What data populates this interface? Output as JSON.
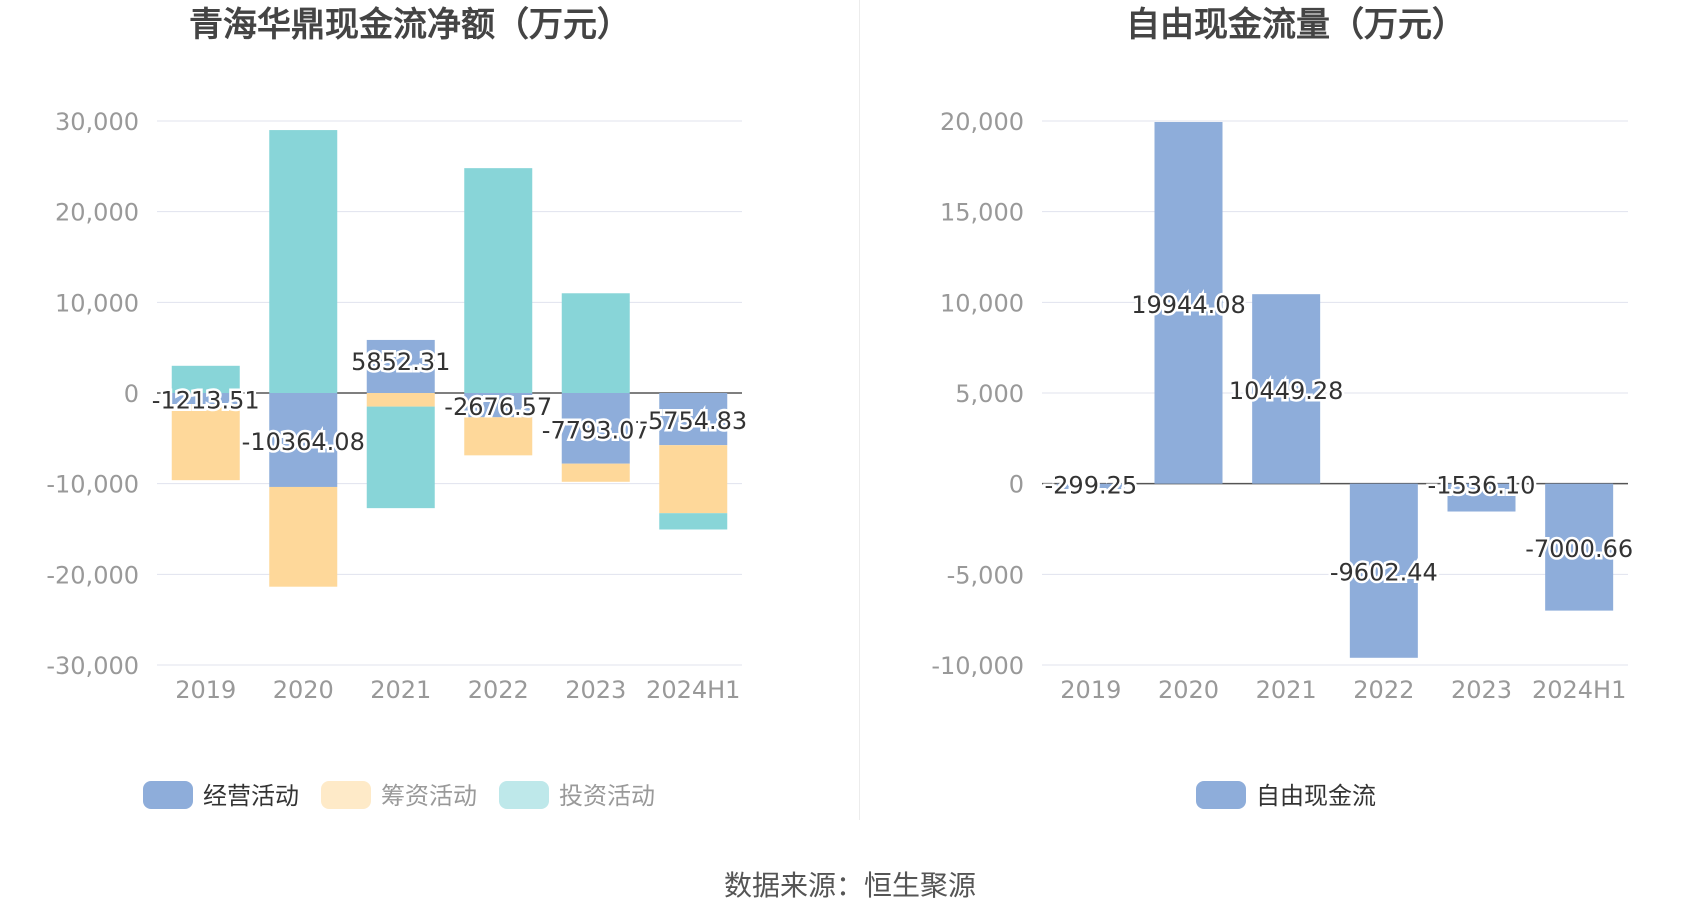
{
  "colors": {
    "operating": "#8eadda",
    "financing": "#fed89a",
    "investing": "#88d5d8",
    "fcf": "#8eadda",
    "axis_text": "#999999",
    "grid": "#e0e3ee",
    "title": "#444444"
  },
  "chart_data": [
    {
      "type": "bar",
      "stacked": true,
      "title": "青海华鼎现金流净额（万元）",
      "categories": [
        "2019",
        "2020",
        "2021",
        "2022",
        "2023",
        "2024H1"
      ],
      "y_ticks": [
        30000,
        20000,
        10000,
        0,
        -10000,
        -20000,
        -30000
      ],
      "y_tick_labels": [
        "30,000",
        "20,000",
        "10,000",
        "0",
        "-10,000",
        "-20,000",
        "-30,000"
      ],
      "ylim": [
        -30000,
        30000
      ],
      "series": [
        {
          "name": "经营活动",
          "key": "operating",
          "values": [
            -1213.51,
            -10364.08,
            5852.31,
            -2676.57,
            -7793.07,
            -5754.83
          ]
        },
        {
          "name": "筹资活动",
          "key": "financing",
          "values": [
            -8400,
            -11000,
            -1500,
            -4200,
            -2000,
            -7500
          ]
        },
        {
          "name": "投资活动",
          "key": "investing",
          "values": [
            3000,
            29000,
            -11200,
            24800,
            11000,
            -1800
          ]
        }
      ],
      "data_labels": [
        "-1213.51",
        "-10364.08",
        "5852.31",
        "-2676.57",
        "-7793.07",
        "-5754.83"
      ],
      "legend": [
        "经营活动",
        "筹资活动",
        "投资活动"
      ]
    },
    {
      "type": "bar",
      "title": "自由现金流量（万元）",
      "categories": [
        "2019",
        "2020",
        "2021",
        "2022",
        "2023",
        "2024H1"
      ],
      "y_ticks": [
        20000,
        15000,
        10000,
        5000,
        0,
        -5000,
        -10000
      ],
      "y_tick_labels": [
        "20,000",
        "15,000",
        "10,000",
        "5,000",
        "0",
        "-5,000",
        "-10,000"
      ],
      "ylim": [
        -10000,
        20000
      ],
      "series": [
        {
          "name": "自由现金流",
          "key": "fcf",
          "values": [
            -299.25,
            19944.08,
            10449.28,
            -9602.44,
            -1536.1,
            -7000.66
          ]
        }
      ],
      "data_labels": [
        "-299.25",
        "19944.08",
        "10449.28",
        "-9602.44",
        "-1536.10",
        "-7000.66"
      ],
      "legend": [
        "自由现金流"
      ]
    }
  ],
  "footer": {
    "source": "数据来源：恒生聚源"
  }
}
